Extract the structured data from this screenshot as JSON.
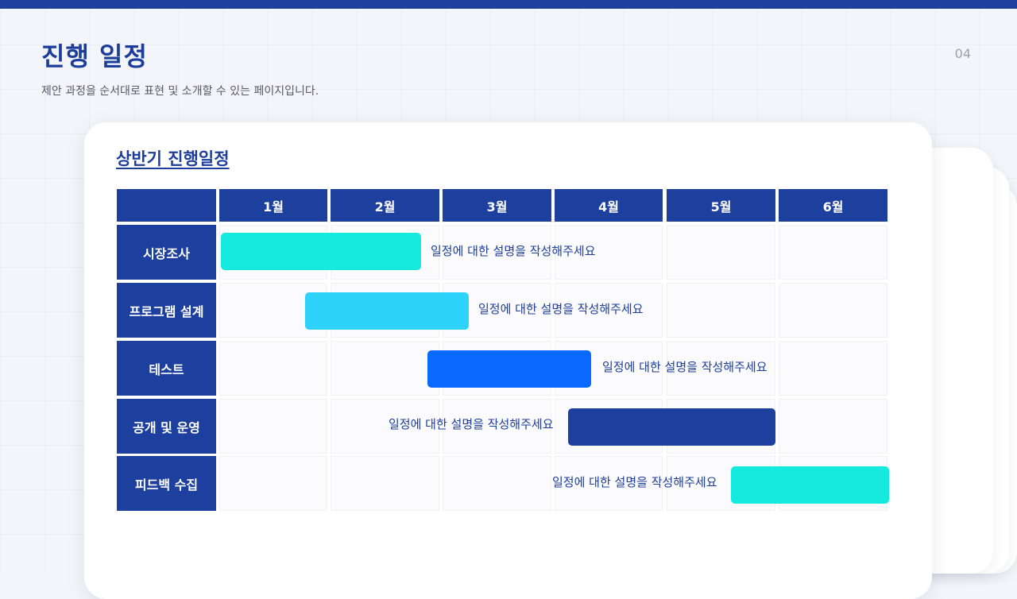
{
  "header": {
    "title": "진행 일정",
    "subtitle": "제안 과정을 순서대로 표현 및 소개할 수 있는 페이지입니다.",
    "page_number": "04",
    "accent_color": "#1d3f9e"
  },
  "schedule": {
    "title": "상반기 진행일정",
    "months": [
      "1월",
      "2월",
      "3월",
      "4월",
      "5월",
      "6월"
    ],
    "tasks": [
      {
        "label": "시장조사",
        "description": "일정에 대한 설명을 작성해주세요",
        "color": "#16eade"
      },
      {
        "label": "프로그램 설계",
        "description": "일정에 대한 설명을 작성해주세요",
        "color": "#2ed3fb"
      },
      {
        "label": "테스트",
        "description": "일정에 대한 설명을 작성해주세요",
        "color": "#0a69ff"
      },
      {
        "label": "공개 및 운영",
        "description": "일정에 대한 설명을 작성해주세요",
        "color": "#1d3f9e"
      },
      {
        "label": "피드백 수집",
        "description": "일정에 대한 설명을 작성해주세요",
        "color": "#16eade"
      }
    ]
  }
}
